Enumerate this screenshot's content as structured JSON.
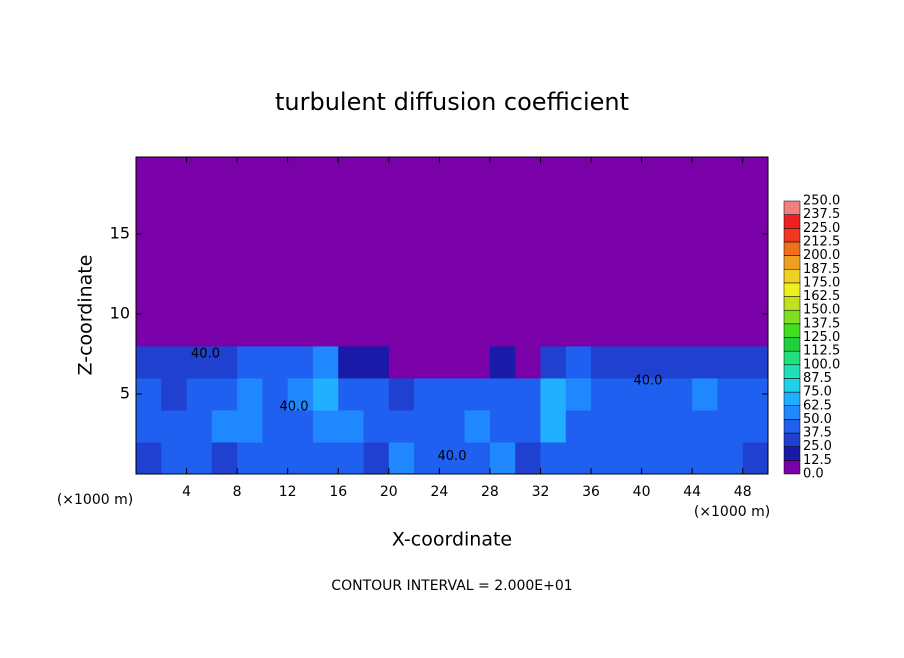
{
  "chart_data": {
    "type": "heatmap",
    "title": "turbulent diffusion coefficient",
    "xlabel": "X-coordinate",
    "ylabel": "Z-coordinate",
    "x_unit": "(×1000 m)",
    "y_unit": "(×1000 m)",
    "footer": "CONTOUR INTERVAL = 2.000E+01",
    "xlim": [
      0,
      50
    ],
    "ylim": [
      0,
      19.8
    ],
    "xticks": [
      4,
      8,
      12,
      16,
      20,
      24,
      28,
      32,
      36,
      40,
      44,
      48
    ],
    "yticks": [
      5,
      10,
      15
    ],
    "x": [
      1,
      3,
      5,
      7,
      9,
      11,
      13,
      15,
      17,
      19,
      21,
      23,
      25,
      27,
      29,
      31,
      33,
      35,
      37,
      39,
      41,
      43,
      45,
      47,
      49
    ],
    "y": [
      1,
      3,
      5,
      7,
      9,
      11,
      13,
      15,
      17,
      19
    ],
    "values": [
      [
        35,
        38,
        40,
        35,
        42,
        40,
        45,
        40,
        38,
        35,
        50,
        45,
        40,
        38,
        55,
        35,
        40,
        45,
        40,
        42,
        38,
        40,
        38,
        40,
        35
      ],
      [
        40,
        42,
        45,
        50,
        55,
        48,
        45,
        60,
        50,
        40,
        42,
        38,
        40,
        55,
        45,
        40,
        70,
        45,
        40,
        38,
        40,
        40,
        42,
        45,
        40
      ],
      [
        38,
        35,
        40,
        45,
        60,
        42,
        50,
        65,
        45,
        40,
        35,
        40,
        42,
        38,
        45,
        40,
        65,
        50,
        45,
        40,
        40,
        45,
        55,
        45,
        40
      ],
      [
        32,
        30,
        28,
        30,
        45,
        40,
        45,
        55,
        20,
        15,
        12,
        10,
        12,
        10,
        15,
        12,
        30,
        45,
        35,
        30,
        28,
        30,
        25,
        35,
        30
      ],
      [
        0,
        0,
        0,
        0,
        0,
        0,
        0,
        0,
        0,
        0,
        0,
        0,
        0,
        0,
        0,
        0,
        0,
        0,
        0,
        0,
        0,
        0,
        0,
        0,
        0
      ],
      [
        0,
        0,
        0,
        0,
        0,
        0,
        0,
        0,
        0,
        0,
        0,
        0,
        0,
        0,
        0,
        0,
        0,
        0,
        0,
        0,
        0,
        0,
        0,
        0,
        0
      ],
      [
        0,
        0,
        0,
        0,
        0,
        0,
        0,
        0,
        0,
        0,
        0,
        0,
        0,
        0,
        0,
        0,
        0,
        0,
        0,
        0,
        0,
        0,
        0,
        0,
        0
      ],
      [
        0,
        0,
        0,
        0,
        0,
        0,
        0,
        0,
        0,
        0,
        0,
        0,
        0,
        0,
        0,
        0,
        0,
        0,
        0,
        0,
        0,
        0,
        0,
        0,
        0
      ],
      [
        0,
        0,
        0,
        0,
        0,
        0,
        0,
        0,
        0,
        0,
        0,
        0,
        0,
        0,
        0,
        0,
        0,
        0,
        0,
        0,
        0,
        0,
        0,
        0,
        0
      ],
      [
        0,
        0,
        0,
        0,
        0,
        0,
        0,
        0,
        0,
        0,
        0,
        0,
        0,
        0,
        0,
        0,
        0,
        0,
        0,
        0,
        0,
        0,
        0,
        0,
        0
      ]
    ],
    "levels": [
      {
        "value": 0,
        "label": "0.0"
      },
      {
        "value": 12.5,
        "label": "12.5"
      },
      {
        "value": 25,
        "label": "25.0"
      },
      {
        "value": 37.5,
        "label": "37.5"
      },
      {
        "value": 50,
        "label": "50.0"
      },
      {
        "value": 62.5,
        "label": "62.5"
      },
      {
        "value": 75,
        "label": "75.0"
      },
      {
        "value": 87.5,
        "label": "87.5"
      },
      {
        "value": 100,
        "label": "100.0"
      },
      {
        "value": 112.5,
        "label": "112.5"
      },
      {
        "value": 125,
        "label": "125.0"
      },
      {
        "value": 137.5,
        "label": "137.5"
      },
      {
        "value": 150,
        "label": "150.0"
      },
      {
        "value": 162.5,
        "label": "162.5"
      },
      {
        "value": 175,
        "label": "175.0"
      },
      {
        "value": 187.5,
        "label": "187.5"
      },
      {
        "value": 200,
        "label": "200.0"
      },
      {
        "value": 212.5,
        "label": "212.5"
      },
      {
        "value": 225,
        "label": "225.0"
      },
      {
        "value": 237.5,
        "label": "237.5"
      },
      {
        "value": 250,
        "label": "250.0"
      }
    ],
    "colors": [
      "#7a00a8",
      "#1a1aa8",
      "#2040d0",
      "#2060f0",
      "#2088ff",
      "#20b0ff",
      "#20d0e8",
      "#20e0b8",
      "#20e080",
      "#20d040",
      "#40e020",
      "#80e020",
      "#c0e020",
      "#f0f020",
      "#f0d020",
      "#f0a020",
      "#f07020",
      "#f03820",
      "#f02020",
      "#f08080"
    ],
    "annotations": [
      {
        "text": "40.0",
        "x": 5.5,
        "y": 7.5
      },
      {
        "text": "40.0",
        "x": 12.5,
        "y": 4.2
      },
      {
        "text": "40.0",
        "x": 25,
        "y": 1.1
      },
      {
        "text": "40.0",
        "x": 40.5,
        "y": 5.8
      }
    ]
  }
}
